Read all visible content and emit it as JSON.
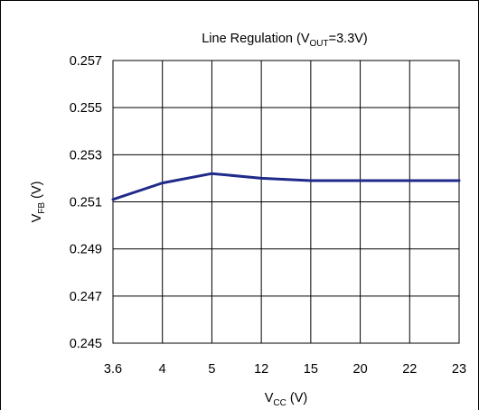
{
  "chart_data": {
    "type": "line",
    "title": {
      "main": "Line Regulation (V",
      "sub": "OUT",
      "tail": "=3.3V)"
    },
    "xlabel": {
      "main": "V",
      "sub": "CC",
      "tail": " (V)"
    },
    "ylabel": {
      "main": "V",
      "sub": "FB",
      "tail": " (V)"
    },
    "categories": [
      "3.6",
      "4",
      "5",
      "12",
      "15",
      "20",
      "22",
      "23"
    ],
    "yticks": [
      "0.245",
      "0.247",
      "0.249",
      "0.251",
      "0.253",
      "0.255",
      "0.257"
    ],
    "ylim": [
      0.245,
      0.257
    ],
    "grid": true,
    "series": [
      {
        "values": [
          0.2511,
          0.2518,
          0.2522,
          0.252,
          0.2519,
          0.2519,
          0.2519,
          0.2519
        ],
        "color": "#1f2a8a"
      }
    ]
  }
}
